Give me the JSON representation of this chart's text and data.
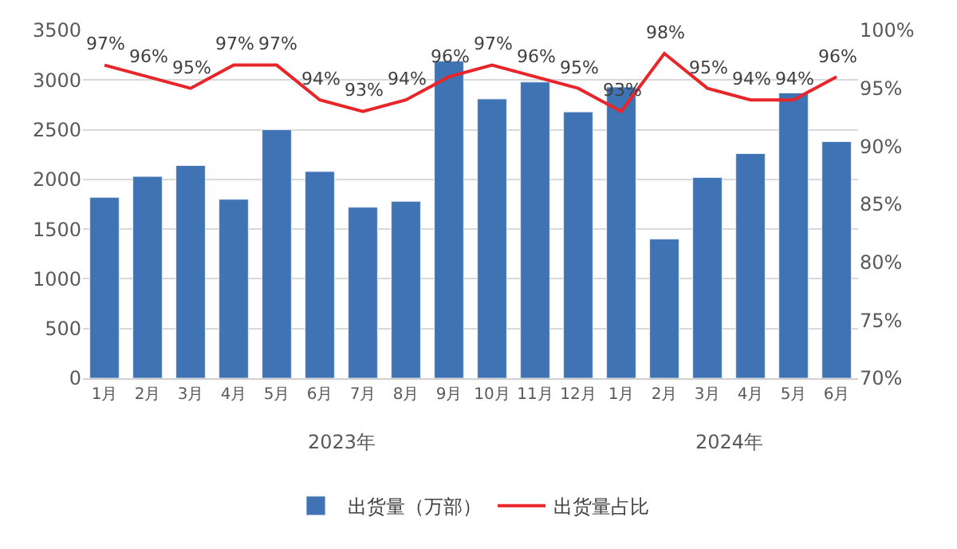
{
  "chart_data": {
    "type": "bar",
    "categories": [
      "1月",
      "2月",
      "3月",
      "4月",
      "5月",
      "6月",
      "7月",
      "8月",
      "9月",
      "10月",
      "11月",
      "12月",
      "1月",
      "2月",
      "3月",
      "4月",
      "5月",
      "6月"
    ],
    "series": [
      {
        "name": "出货量（万部）",
        "color": "#3f73b3",
        "values": [
          1820,
          2030,
          2140,
          1800,
          2500,
          2080,
          1720,
          1780,
          3190,
          2810,
          2980,
          2680,
          2930,
          1400,
          2020,
          2260,
          2870,
          2380
        ]
      },
      {
        "name": "出货量占比",
        "type": "line",
        "axis": "y2",
        "color": "#e8262a",
        "values": [
          97,
          96,
          95,
          97,
          97,
          94,
          93,
          94,
          96,
          97,
          96,
          95,
          93,
          98,
          95,
          94,
          94,
          96
        ],
        "value_labels": [
          "97%",
          "96%",
          "95%",
          "97%",
          "97%",
          "94%",
          "93%",
          "94%",
          "96%",
          "97%",
          "96%",
          "95%",
          "93%",
          "98%",
          "95%",
          "94%",
          "94%",
          "96%"
        ]
      }
    ],
    "ylim": [
      0,
      3500
    ],
    "yticks": [
      0,
      500,
      1000,
      1500,
      2000,
      2500,
      3000,
      3500
    ],
    "y2lim": [
      70,
      100
    ],
    "y2ticks": [
      {
        "value": 70,
        "label": "70%"
      },
      {
        "value": 75,
        "label": "75%"
      },
      {
        "value": 80,
        "label": "80%"
      },
      {
        "value": 85,
        "label": "85%"
      },
      {
        "value": 90,
        "label": "90%"
      },
      {
        "value": 95,
        "label": "95%"
      },
      {
        "value": 100,
        "label": "100%"
      }
    ],
    "annotations": [
      "2023年",
      "2024年"
    ],
    "grid": "y",
    "legend": "bottom",
    "marker": "none",
    "line_style": "solid"
  }
}
